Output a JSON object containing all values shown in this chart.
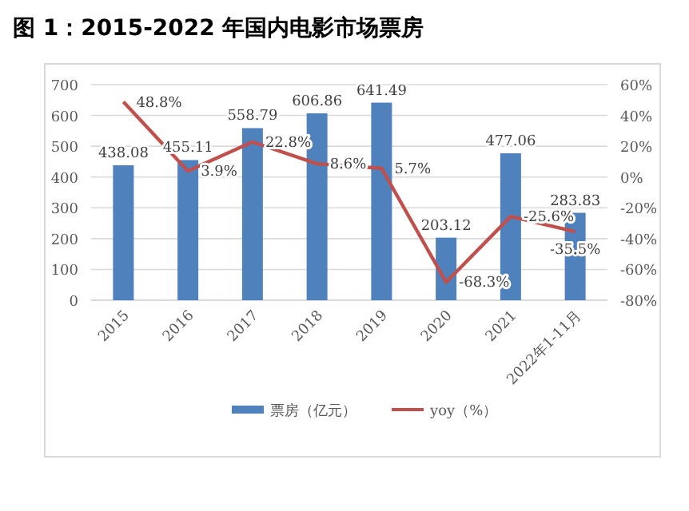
{
  "chart_data": {
    "type": "bar",
    "title": "图 1：2015-2022 年国内电影市场票房",
    "categories": [
      "2015",
      "2016",
      "2017",
      "2018",
      "2019",
      "2020",
      "2021",
      "2022年1-11月"
    ],
    "series": [
      {
        "name": "票房（亿元）",
        "color": "#4f81bd",
        "values": [
          438.08,
          455.11,
          558.79,
          606.86,
          641.49,
          203.12,
          477.06,
          283.83
        ],
        "value_labels": [
          "438.08",
          "455.11",
          "558.79",
          "606.86",
          "641.49",
          "203.12",
          "477.06",
          "283.83"
        ]
      },
      {
        "name": "yoy（%）",
        "type": "line",
        "axis": "y2",
        "color": "#c0504d",
        "values": [
          48.8,
          3.9,
          22.8,
          8.6,
          5.7,
          -68.3,
          -25.6,
          -35.5
        ],
        "value_labels": [
          "48.8%",
          "3.9%",
          "22.8%",
          "8.6%",
          "5.7%",
          "-68.3%",
          "-25.6%",
          "-35.5%"
        ]
      }
    ],
    "ylim": [
      0,
      700
    ],
    "yticks": [
      0,
      100,
      200,
      300,
      400,
      500,
      600,
      700
    ],
    "y2lim": [
      -80,
      60
    ],
    "y2ticks": [
      {
        "value": -80,
        "label": "-80%"
      },
      {
        "value": -60,
        "label": "-60%"
      },
      {
        "value": -40,
        "label": "-40%"
      },
      {
        "value": -20,
        "label": "-20%"
      },
      {
        "value": 0,
        "label": "0%"
      },
      {
        "value": 20,
        "label": "20%"
      },
      {
        "value": 40,
        "label": "40%"
      },
      {
        "value": 60,
        "label": "60%"
      }
    ],
    "grid": "y",
    "legend": "bottom"
  }
}
